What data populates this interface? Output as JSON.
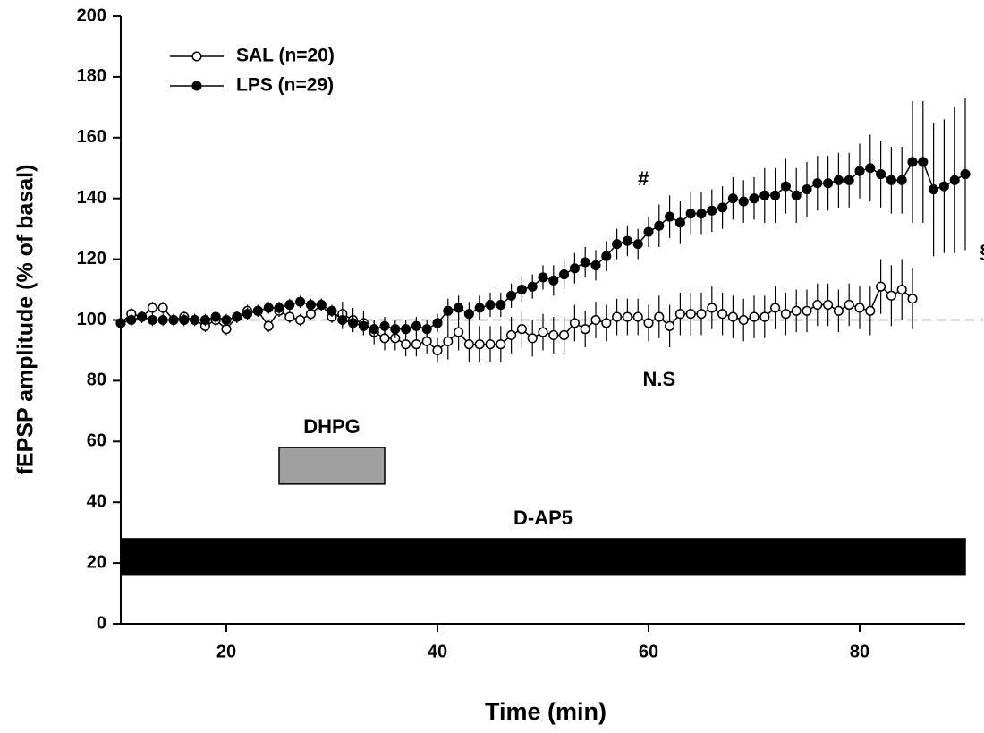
{
  "chart_data": {
    "type": "line",
    "xlabel": "Time (min)",
    "ylabel": "fEPSP amplitude (% of basal)",
    "xlim": [
      10,
      90
    ],
    "ylim": [
      0,
      200
    ],
    "xticks": [
      20,
      40,
      60,
      80
    ],
    "yticks": [
      0,
      20,
      40,
      60,
      80,
      100,
      120,
      140,
      160,
      180,
      200
    ],
    "baseline": 100,
    "legend": "upper left",
    "series": [
      {
        "name": "SAL (n=20)",
        "color": "#000000",
        "marker": "open",
        "x": [
          10,
          11,
          12,
          13,
          14,
          15,
          16,
          17,
          18,
          19,
          20,
          21,
          22,
          23,
          24,
          25,
          26,
          27,
          28,
          29,
          30,
          31,
          32,
          33,
          34,
          35,
          36,
          37,
          38,
          39,
          40,
          41,
          42,
          43,
          44,
          45,
          46,
          47,
          48,
          49,
          50,
          51,
          52,
          53,
          54,
          55,
          56,
          57,
          58,
          59,
          60,
          61,
          62,
          63,
          64,
          65,
          66,
          67,
          68,
          69,
          70,
          71,
          72,
          73,
          74,
          75,
          76,
          77,
          78,
          79,
          80,
          81,
          82,
          83,
          84,
          85
        ],
        "values": [
          99,
          102,
          101,
          104,
          104,
          100,
          101,
          100,
          98,
          100,
          97,
          101,
          103,
          103,
          98,
          103,
          101,
          100,
          102,
          105,
          101,
          102,
          100,
          99,
          96,
          94,
          94,
          92,
          92,
          93,
          90,
          93,
          96,
          92,
          92,
          92,
          92,
          95,
          97,
          94,
          96,
          95,
          95,
          99,
          97,
          100,
          99,
          101,
          101,
          101,
          99,
          101,
          98,
          102,
          102,
          102,
          104,
          102,
          101,
          100,
          101,
          101,
          104,
          102,
          103,
          103,
          105,
          105,
          103,
          105,
          104,
          103,
          111,
          108,
          110,
          107
        ],
        "errors": [
          2,
          2,
          2,
          2,
          2,
          2,
          2,
          2,
          2,
          2,
          2,
          2,
          2,
          2,
          2,
          2,
          2,
          2,
          2,
          2,
          2,
          4,
          4,
          4,
          4,
          4,
          4,
          4,
          4,
          4,
          4,
          6,
          6,
          6,
          6,
          6,
          6,
          6,
          6,
          6,
          6,
          6,
          6,
          6,
          6,
          6,
          6,
          6,
          6,
          6,
          6,
          7,
          7,
          7,
          7,
          7,
          7,
          7,
          7,
          7,
          7,
          7,
          7,
          7,
          7,
          7,
          7,
          7,
          7,
          7,
          7,
          8,
          9,
          10,
          10,
          10
        ]
      },
      {
        "name": "LPS (n=29)",
        "color": "#000000",
        "marker": "filled",
        "x": [
          10,
          11,
          12,
          13,
          14,
          15,
          16,
          17,
          18,
          19,
          20,
          21,
          22,
          23,
          24,
          25,
          26,
          27,
          28,
          29,
          30,
          31,
          32,
          33,
          34,
          35,
          36,
          37,
          38,
          39,
          40,
          41,
          42,
          43,
          44,
          45,
          46,
          47,
          48,
          49,
          50,
          51,
          52,
          53,
          54,
          55,
          56,
          57,
          58,
          59,
          60,
          61,
          62,
          63,
          64,
          65,
          66,
          67,
          68,
          69,
          70,
          71,
          72,
          73,
          74,
          75,
          76,
          77,
          78,
          79,
          80,
          81,
          82,
          83,
          84,
          85,
          86,
          87,
          88,
          89,
          90
        ],
        "values": [
          99,
          100,
          101,
          100,
          100,
          100,
          100,
          100,
          100,
          101,
          100,
          101,
          102,
          103,
          104,
          104,
          105,
          106,
          105,
          105,
          103,
          100,
          99,
          98,
          97,
          98,
          97,
          97,
          98,
          97,
          99,
          103,
          104,
          102,
          104,
          105,
          105,
          108,
          110,
          111,
          114,
          113,
          115,
          117,
          119,
          118,
          121,
          125,
          126,
          125,
          129,
          131,
          134,
          132,
          135,
          135,
          136,
          137,
          140,
          139,
          140,
          141,
          141,
          144,
          141,
          143,
          145,
          145,
          146,
          146,
          149,
          150,
          148,
          146,
          146,
          152,
          152,
          143,
          144,
          146,
          148
        ],
        "errors": [
          2,
          2,
          2,
          2,
          2,
          2,
          2,
          2,
          2,
          2,
          2,
          2,
          2,
          2,
          2,
          2,
          2,
          2,
          2,
          2,
          2,
          3,
          3,
          3,
          3,
          3,
          3,
          3,
          3,
          3,
          3,
          4,
          4,
          4,
          4,
          4,
          4,
          4,
          4,
          4,
          4,
          5,
          5,
          5,
          5,
          5,
          5,
          5,
          5,
          5,
          5,
          7,
          7,
          7,
          7,
          7,
          7,
          7,
          7,
          7,
          7,
          9,
          9,
          9,
          9,
          9,
          9,
          9,
          9,
          9,
          9,
          11,
          11,
          11,
          11,
          20,
          20,
          22,
          22,
          24,
          25
        ]
      }
    ],
    "bands": [
      {
        "label": "DHPG",
        "x": [
          25,
          35
        ],
        "y": [
          46,
          58
        ],
        "color": "#a0a0a0"
      },
      {
        "label": "D-AP5",
        "x": [
          10,
          90
        ],
        "y": [
          16,
          28
        ],
        "color": "#000000"
      }
    ],
    "annotations": [
      {
        "text": "#",
        "x": 59.5,
        "y": 146
      },
      {
        "text": "N.S",
        "x": 61,
        "y": 80
      },
      {
        "text": "§",
        "x": 91.9,
        "y": 122
      }
    ]
  }
}
